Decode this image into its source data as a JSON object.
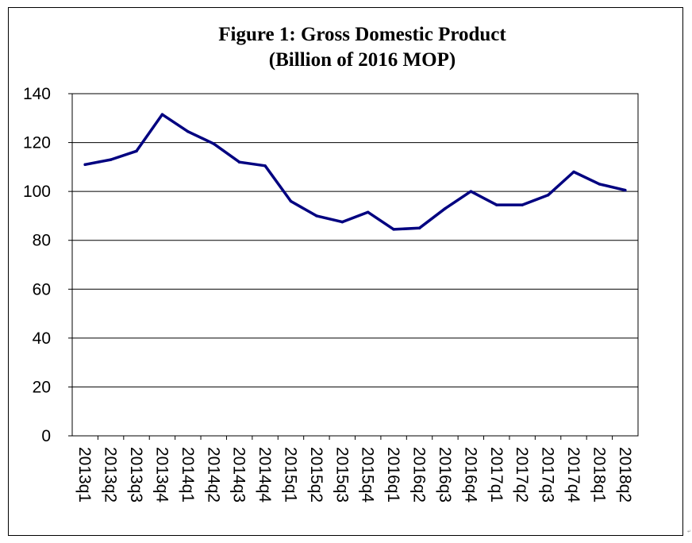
{
  "chart_data": {
    "type": "line",
    "title_lines": [
      "Figure 1: Gross Domestic Product",
      "(Billion of 2016 MOP)"
    ],
    "xlabel": "",
    "ylabel": "",
    "ylim": [
      0,
      140
    ],
    "yticks": [
      0,
      20,
      40,
      60,
      80,
      100,
      120,
      140
    ],
    "grid": true,
    "legend": "none",
    "categories": [
      "2013q1",
      "2013q2",
      "2013q3",
      "2013q4",
      "2014q1",
      "2014q2",
      "2014q3",
      "2014q4",
      "2015q1",
      "2015q2",
      "2015q3",
      "2015q4",
      "2016q1",
      "2016q2",
      "2016q3",
      "2016q4",
      "2017q1",
      "2017q2",
      "2017q3",
      "2017q4",
      "2018q1",
      "2018q2"
    ],
    "series": [
      {
        "values": [
          111,
          113,
          116.5,
          131.5,
          124.5,
          119.5,
          112,
          110.5,
          96,
          90,
          87.5,
          91.5,
          84.5,
          85,
          93,
          100,
          94.5,
          94.5,
          98.5,
          108,
          103,
          100.5
        ],
        "color": "#000080"
      }
    ]
  }
}
